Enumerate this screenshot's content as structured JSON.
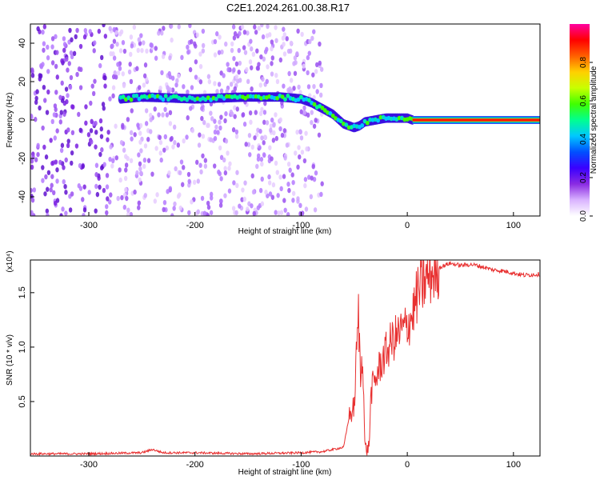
{
  "title": "C2E1.2024.261.00.38.R17",
  "chart_data": [
    {
      "type": "heatmap",
      "xlabel": "Height of straight line (km)",
      "ylabel": "Frequency (Hz)",
      "xlim": [
        -355,
        125
      ],
      "ylim": [
        -50,
        50
      ],
      "xticks": [
        -300,
        -200,
        -100,
        0,
        100
      ],
      "yticks": [
        -40,
        -20,
        0,
        20,
        40
      ],
      "colorbar": {
        "label": "Normalized spectral amplitude",
        "range": [
          0,
          1
        ],
        "ticks": [
          "0.0",
          "0.2",
          "0.4",
          "0.6",
          "0.8"
        ],
        "colors": [
          "#ffffff",
          "#d9b3ff",
          "#8a2be2",
          "#3a00ff",
          "#0050ff",
          "#00c8ff",
          "#00ff90",
          "#40ff00",
          "#c8ff00",
          "#ffd000",
          "#ff6000",
          "#ff0000",
          "#ff00a0"
        ]
      },
      "ridge": {
        "x": [
          -270,
          -250,
          -200,
          -150,
          -120,
          -100,
          -90,
          -80,
          -70,
          -60,
          -50,
          -45,
          -40,
          -30,
          -20,
          -10,
          0,
          5,
          125
        ],
        "y": [
          11,
          12,
          11,
          12,
          12,
          11,
          9,
          6,
          3,
          -2,
          -4,
          -3,
          -1,
          0,
          1,
          1,
          1,
          0,
          0
        ]
      },
      "noise_region": [
        -355,
        -80
      ]
    },
    {
      "type": "line",
      "xlabel": "Height of straight line (km)",
      "ylabel": "SNR (10 * v/v)",
      "multiplier_label": "(x10⁴)",
      "xlim": [
        -355,
        125
      ],
      "ylim": [
        0,
        1.8
      ],
      "xticks": [
        -300,
        -200,
        -100,
        0,
        100
      ],
      "yticks": [
        0.5,
        1.0,
        1.5
      ],
      "ytick_labels": [
        "0.5",
        "1.0",
        "1.5"
      ],
      "series": [
        {
          "color": "#e83030",
          "x": [
            -355,
            -300,
            -250,
            -240,
            -230,
            -200,
            -150,
            -100,
            -80,
            -60,
            -55,
            -50,
            -48,
            -46,
            -44,
            -42,
            -40,
            -38,
            -36,
            -34,
            -30,
            -25,
            -20,
            -15,
            -10,
            -5,
            0,
            5,
            10,
            20,
            30,
            40,
            50,
            60,
            70,
            80,
            90,
            100,
            110,
            125
          ],
          "values": [
            0.02,
            0.02,
            0.03,
            0.06,
            0.03,
            0.03,
            0.02,
            0.03,
            0.04,
            0.08,
            0.35,
            0.45,
            0.9,
            1.3,
            0.7,
            1.0,
            0.1,
            0.05,
            0.1,
            0.6,
            0.7,
            0.85,
            0.95,
            1.05,
            1.1,
            1.15,
            1.2,
            1.3,
            1.5,
            1.65,
            1.73,
            1.77,
            1.75,
            1.76,
            1.74,
            1.71,
            1.7,
            1.68,
            1.66,
            1.67
          ]
        }
      ]
    }
  ]
}
